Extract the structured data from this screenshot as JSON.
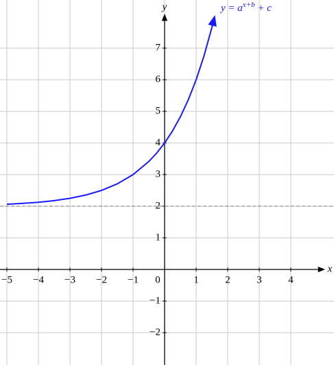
{
  "chart_data": {
    "type": "line",
    "x_label": "x",
    "y_label": "y",
    "curve_label": "y = a",
    "curve_label_exp": "x+b",
    "curve_label_tail": " + c",
    "x": [
      -5,
      -4.5,
      -4,
      -3.5,
      -3,
      -2.5,
      -2,
      -1.5,
      -1,
      -0.5,
      -0.25,
      0,
      0.25,
      0.5,
      0.75,
      1,
      1.25,
      1.5,
      1.58
    ],
    "series": [
      {
        "color": "#1a1aff",
        "values": [
          2.0625,
          2.0884,
          2.125,
          2.1768,
          2.25,
          2.3536,
          2.5,
          2.7071,
          3,
          3.4142,
          3.6818,
          4,
          4.3784,
          4.8284,
          5.3636,
          6,
          6.7568,
          7.6569,
          7.9792
        ]
      }
    ],
    "asymptote": 2,
    "xlim": [
      -5,
      5.2
    ],
    "ylim": [
      -3,
      8
    ],
    "xticks": [
      {
        "value": -5,
        "label": "−5"
      },
      {
        "value": -4,
        "label": "−4"
      },
      {
        "value": -3,
        "label": "−3"
      },
      {
        "value": -2,
        "label": "−2"
      },
      {
        "value": -1,
        "label": "−1"
      },
      0,
      1,
      2,
      3,
      4
    ],
    "yticks": [
      {
        "value": -2,
        "label": "−2"
      },
      {
        "value": -1,
        "label": "−1"
      },
      1,
      2,
      3,
      4,
      5,
      6,
      7
    ],
    "grid": true
  }
}
